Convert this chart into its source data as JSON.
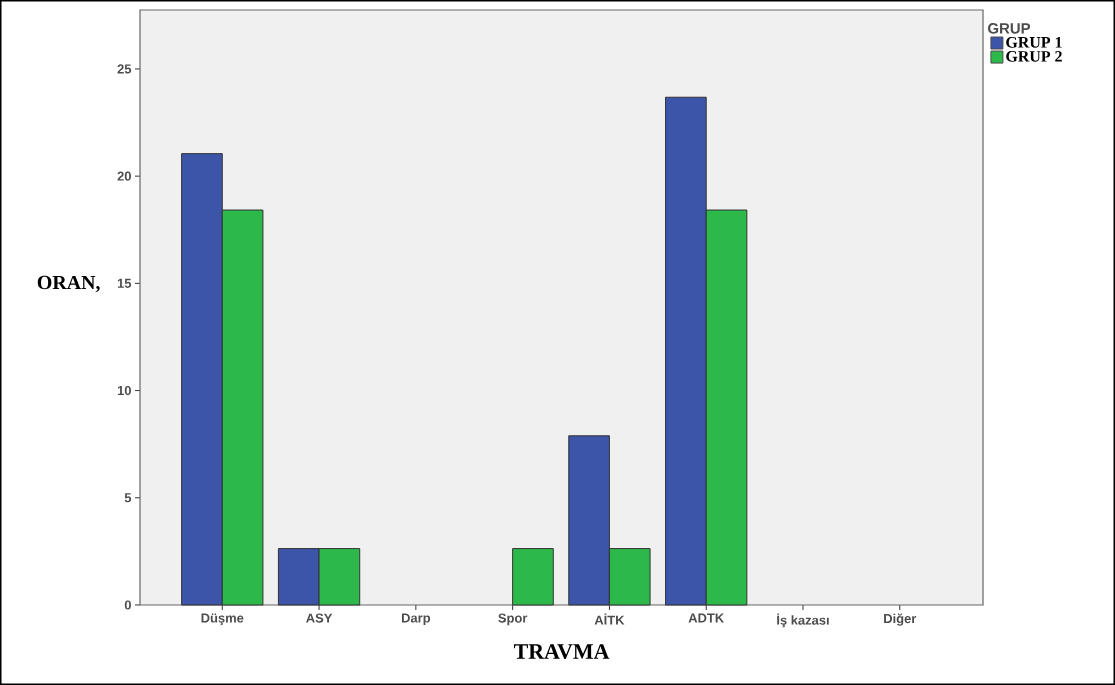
{
  "chart_data": {
    "type": "bar",
    "xlabel": "TRAVMA",
    "ylabel": "ORAN,",
    "legend_title": "GRUP",
    "categories": [
      "Düşme",
      "ASY",
      "Darp",
      "Spor",
      "AİTK",
      "ADTK",
      "İş kazası",
      "Diğer"
    ],
    "series": [
      {
        "name": "GRUP 1",
        "color": "#3c55a8",
        "values": [
          21.05,
          2.63,
          0,
          0,
          7.89,
          23.68,
          0,
          0
        ]
      },
      {
        "name": "GRUP 2",
        "color": "#2db84a",
        "values": [
          18.42,
          2.63,
          0,
          2.63,
          2.63,
          18.42,
          0,
          0
        ]
      }
    ],
    "ylim": [
      0,
      27.75
    ],
    "yticks": [
      0,
      5,
      10,
      15,
      20,
      25
    ],
    "grid": false,
    "legend": "top right"
  }
}
